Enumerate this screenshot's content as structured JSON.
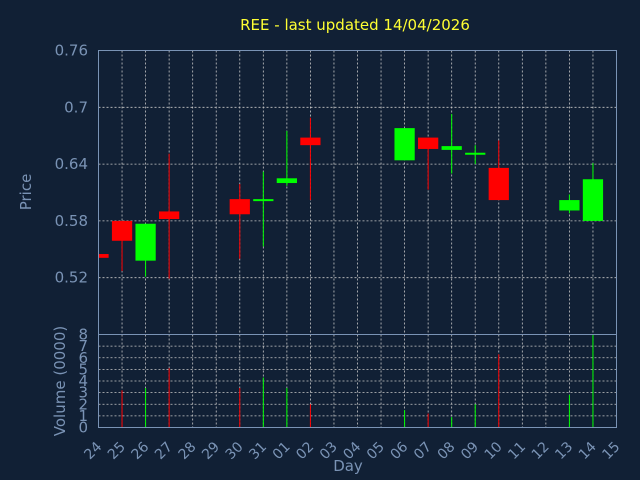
{
  "chart_data": [
    {
      "type": "candlestick",
      "title": "REE - last updated 14/04/2026",
      "ylabel": "Price",
      "ylim": [
        0.46,
        0.76
      ],
      "yticks": [
        0.52,
        0.58,
        0.64,
        0.7,
        0.76
      ],
      "ytick_labels": [
        "0.52",
        "0.58",
        "0.64",
        "0.7",
        "0.76"
      ],
      "grid": true,
      "colors": {
        "up": "#00ff00",
        "down": "#ff0000"
      },
      "candles": [
        {
          "day": "24",
          "open": 0.545,
          "high": 0.545,
          "low": 0.541,
          "close": 0.541
        },
        {
          "day": "25",
          "open": 0.58,
          "high": 0.58,
          "low": 0.527,
          "close": 0.559
        },
        {
          "day": "26",
          "open": 0.538,
          "high": 0.577,
          "low": 0.521,
          "close": 0.577
        },
        {
          "day": "27",
          "open": 0.59,
          "high": 0.651,
          "low": 0.519,
          "close": 0.582
        },
        {
          "day": "30",
          "open": 0.603,
          "high": 0.619,
          "low": 0.54,
          "close": 0.587
        },
        {
          "day": "31",
          "open": 0.601,
          "high": 0.632,
          "low": 0.553,
          "close": 0.603
        },
        {
          "day": "01",
          "open": 0.62,
          "high": 0.675,
          "low": 0.617,
          "close": 0.625
        },
        {
          "day": "02",
          "open": 0.668,
          "high": 0.689,
          "low": 0.602,
          "close": 0.66
        },
        {
          "day": "06",
          "open": 0.644,
          "high": 0.678,
          "low": 0.644,
          "close": 0.678
        },
        {
          "day": "07",
          "open": 0.668,
          "high": 0.668,
          "low": 0.613,
          "close": 0.656
        },
        {
          "day": "08",
          "open": 0.655,
          "high": 0.693,
          "low": 0.63,
          "close": 0.659
        },
        {
          "day": "09",
          "open": 0.65,
          "high": 0.66,
          "low": 0.64,
          "close": 0.652
        },
        {
          "day": "10",
          "open": 0.636,
          "high": 0.665,
          "low": 0.602,
          "close": 0.602
        },
        {
          "day": "13",
          "open": 0.591,
          "high": 0.608,
          "low": 0.588,
          "close": 0.602
        },
        {
          "day": "14",
          "open": 0.58,
          "high": 0.641,
          "low": 0.58,
          "close": 0.624
        }
      ]
    },
    {
      "type": "bar",
      "ylabel": "Volume (0000)",
      "xlabel": "Day",
      "ylim": [
        0,
        8
      ],
      "yticks": [
        0,
        1,
        2,
        3,
        4,
        5,
        6,
        7,
        8
      ],
      "ytick_labels": [
        "0",
        "1",
        "2",
        "3",
        "4",
        "5",
        "6",
        "7",
        "8"
      ],
      "categories": [
        "24",
        "25",
        "26",
        "27",
        "28",
        "29",
        "30",
        "31",
        "01",
        "02",
        "03",
        "04",
        "05",
        "06",
        "07",
        "08",
        "09",
        "10",
        "11",
        "12",
        "13",
        "14",
        "15"
      ],
      "values": [
        0,
        3.2,
        3.4,
        5.1,
        0,
        0,
        3.4,
        4.3,
        3.4,
        2.0,
        0,
        0,
        0,
        1.5,
        1.2,
        0.9,
        2.0,
        6.3,
        0,
        0,
        2.8,
        8.0,
        0
      ],
      "direction": [
        "down",
        "down",
        "up",
        "down",
        "",
        "",
        "down",
        "up",
        "up",
        "down",
        "",
        "",
        "",
        "up",
        "down",
        "up",
        "up",
        "down",
        "",
        "",
        "up",
        "up",
        ""
      ],
      "grid": true
    }
  ]
}
